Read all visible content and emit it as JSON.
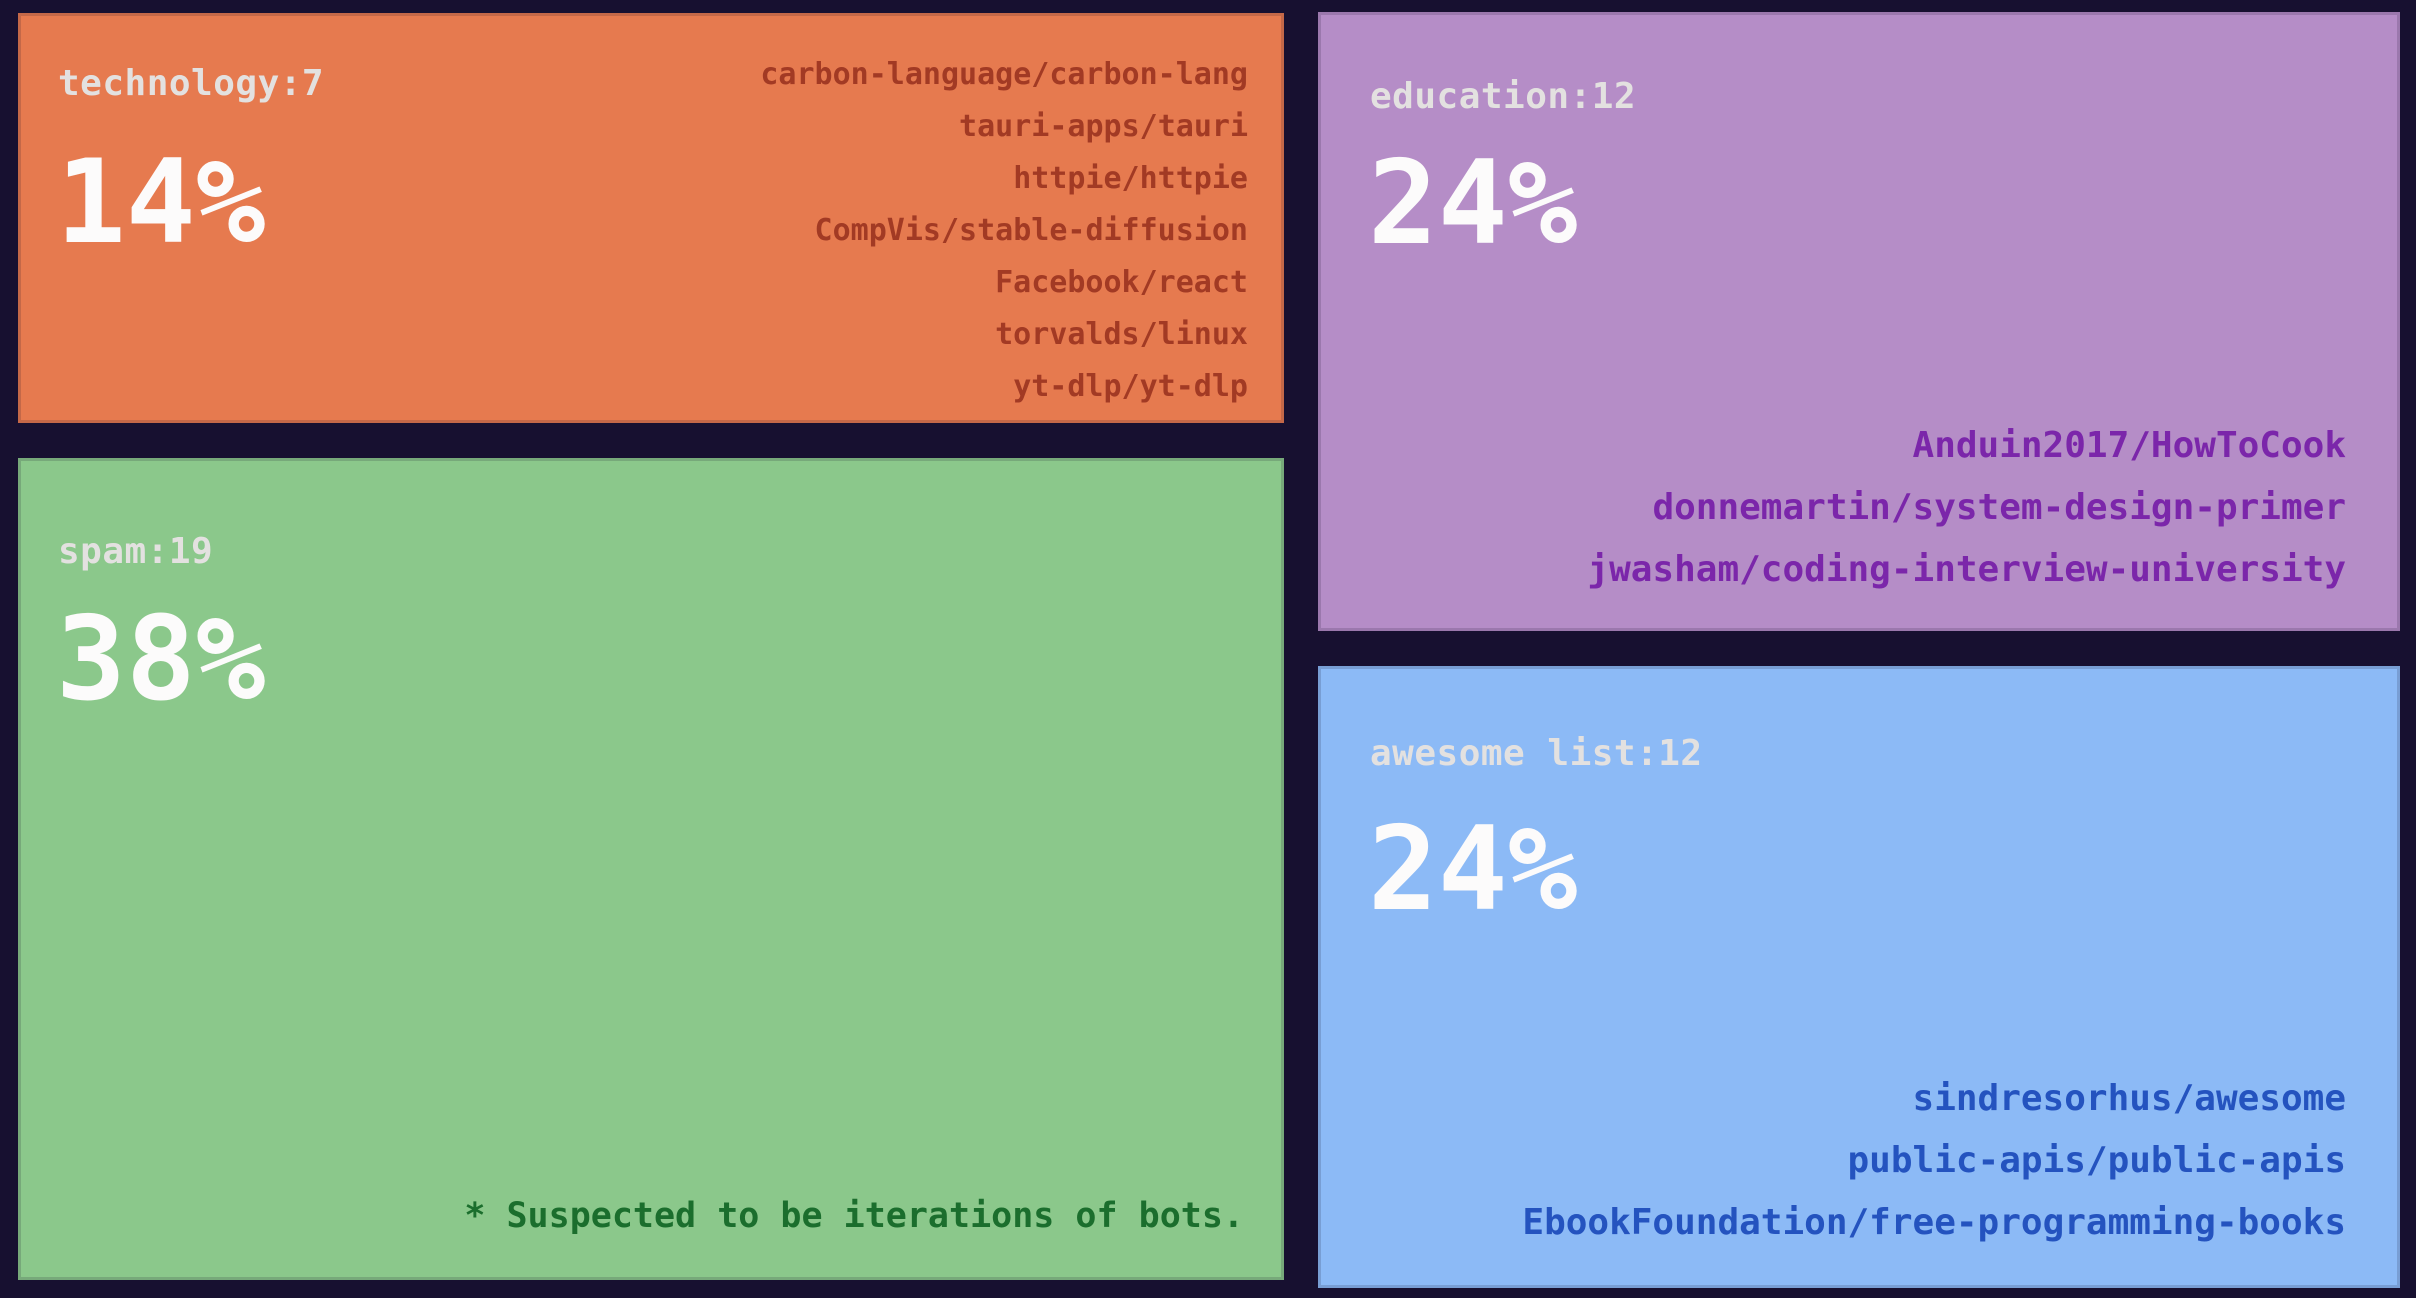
{
  "chart_data": {
    "type": "treemap",
    "title": "",
    "legend": "none",
    "background_color": "#171030",
    "header_text_color": "#e3e1e0",
    "percent_text_color": "#fcfbfb",
    "series": [
      {
        "name": "technology",
        "count": 7,
        "percent": 14,
        "header": "technology:7",
        "percent_label": "14%",
        "tile_color": "#e67a4f",
        "repo_text_color": "#a23a24",
        "repos": [
          "carbon-language/carbon-lang",
          "tauri-apps/tauri",
          "httpie/httpie",
          "CompVis/stable-diffusion",
          "Facebook/react",
          "torvalds/linux",
          "yt-dlp/yt-dlp"
        ]
      },
      {
        "name": "spam",
        "count": 19,
        "percent": 38,
        "header": "spam:19",
        "percent_label": "38%",
        "tile_color": "#8bc88b",
        "note_text_color": "#1b6e2d",
        "repos": [],
        "note": "* Suspected to be iterations of bots."
      },
      {
        "name": "education",
        "count": 12,
        "percent": 24,
        "header": "education:12",
        "percent_label": "24%",
        "tile_color": "#b58dc7",
        "repo_text_color": "#7b26aa",
        "repos": [
          "Anduin2017/HowToCook",
          "donnemartin/system-design-primer",
          "jwasham/coding-interview-university"
        ]
      },
      {
        "name": "awesome list",
        "count": 12,
        "percent": 24,
        "header": "awesome list:12",
        "percent_label": "24%",
        "tile_color": "#8cbaf6",
        "repo_text_color": "#2453bf",
        "repos": [
          "sindresorhus/awesome",
          "public-apis/public-apis",
          "EbookFoundation/free-programming-books"
        ]
      }
    ],
    "layout": {
      "columns": [
        [
          "technology",
          "spam"
        ],
        [
          "education",
          "awesome list"
        ]
      ]
    }
  }
}
